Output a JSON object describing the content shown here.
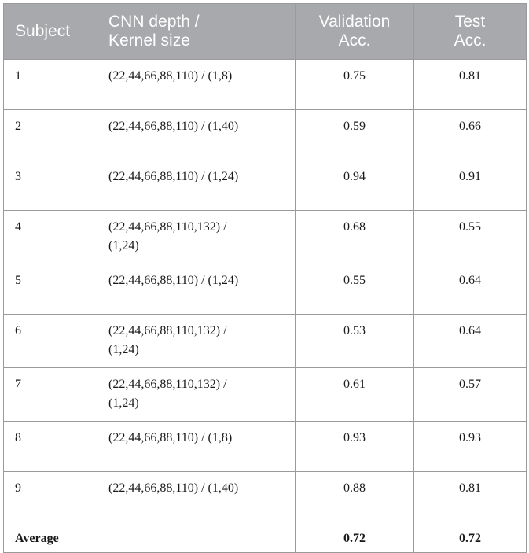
{
  "table": {
    "headers": [
      "Subject",
      "CNN depth /\nKernel size",
      "Validation\nAcc.",
      "Test\nAcc."
    ],
    "rows": [
      {
        "subject": "1",
        "config": "(22,44,66,88,110) / (1,8)",
        "validation": "0.75",
        "test": "0.81"
      },
      {
        "subject": "2",
        "config": "(22,44,66,88,110) / (1,40)",
        "validation": "0.59",
        "test": "0.66"
      },
      {
        "subject": "3",
        "config": "(22,44,66,88,110) / (1,24)",
        "validation": "0.94",
        "test": "0.91"
      },
      {
        "subject": "4",
        "config": "(22,44,66,88,110,132) /\n(1,24)",
        "validation": "0.68",
        "test": "0.55"
      },
      {
        "subject": "5",
        "config": "(22,44,66,88,110) / (1,24)",
        "validation": "0.55",
        "test": "0.64"
      },
      {
        "subject": "6",
        "config": "(22,44,66,88,110,132) /\n(1,24)",
        "validation": "0.53",
        "test": "0.64"
      },
      {
        "subject": "7",
        "config": "(22,44,66,88,110,132) /\n(1,24)",
        "validation": "0.61",
        "test": "0.57"
      },
      {
        "subject": "8",
        "config": "(22,44,66,88,110) / (1,8)",
        "validation": "0.93",
        "test": "0.93"
      },
      {
        "subject": "9",
        "config": "(22,44,66,88,110) / (1,40)",
        "validation": "0.88",
        "test": "0.81"
      }
    ],
    "average": {
      "label": "Average",
      "validation": "0.72",
      "test": "0.72"
    }
  }
}
